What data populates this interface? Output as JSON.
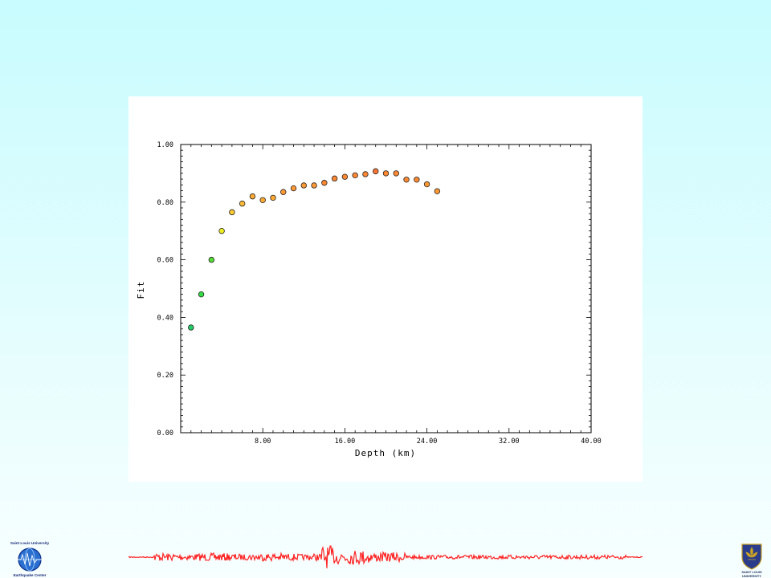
{
  "chart_data": {
    "type": "scatter",
    "title": "",
    "xlabel": "Depth (km)",
    "ylabel": "Fit",
    "xlim": [
      0,
      40
    ],
    "ylim": [
      0,
      1
    ],
    "x_ticks": [
      "8.00",
      "16.00",
      "24.00",
      "32.00",
      "40.00"
    ],
    "y_ticks": [
      "0.00",
      "0.20",
      "0.40",
      "0.60",
      "0.80",
      "1.00"
    ],
    "grid": false,
    "legend": "none",
    "series": [
      {
        "x": [
          1,
          2,
          3,
          4,
          5,
          6,
          7,
          8,
          9,
          10,
          11,
          12,
          13,
          14,
          15,
          16,
          17,
          18,
          19,
          20,
          21,
          22,
          23,
          24,
          25
        ],
        "y": [
          0.365,
          0.48,
          0.6,
          0.7,
          0.765,
          0.795,
          0.82,
          0.807,
          0.815,
          0.835,
          0.848,
          0.858,
          0.858,
          0.867,
          0.882,
          0.888,
          0.893,
          0.897,
          0.907,
          0.9,
          0.9,
          0.878,
          0.878,
          0.862,
          0.838
        ],
        "colors": [
          "#22cc66",
          "#33dd44",
          "#55dd33",
          "#eeee22",
          "#ffcc33",
          "#ffbb33",
          "#ffaa33",
          "#ffaa33",
          "#ffaa33",
          "#ff9933",
          "#ff9933",
          "#ff9933",
          "#ff9933",
          "#ff8833",
          "#ff8833",
          "#ff8833",
          "#ff8833",
          "#ff8833",
          "#ff7733",
          "#ff8833",
          "#ff8833",
          "#ff8833",
          "#ff8833",
          "#ff9933",
          "#ff9933"
        ]
      }
    ]
  },
  "logos": {
    "left": {
      "line1": "Saint Louis University",
      "line2": "Earthquake Center"
    },
    "right": {
      "line1": "SAINT LOUIS",
      "line2": "UNIVERSITY"
    }
  },
  "colors": {
    "seismogram": "#ff2222",
    "seismogram_flat": "#ff9999"
  }
}
